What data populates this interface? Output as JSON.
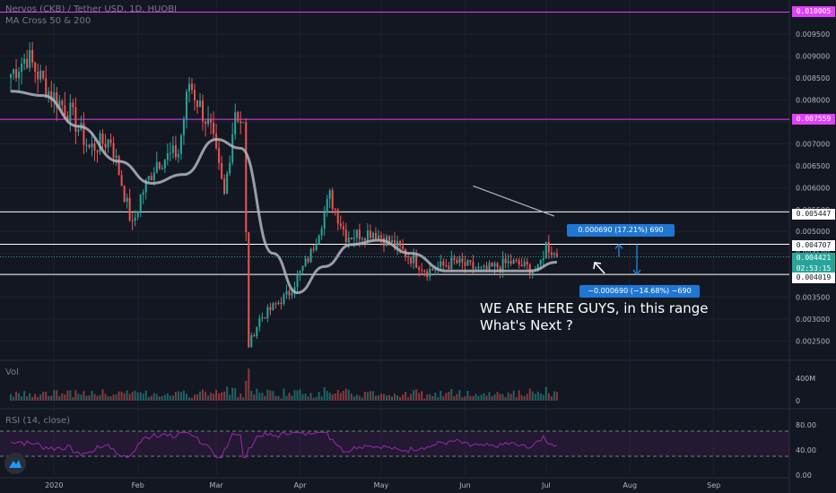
{
  "header": {
    "symbol_line": "Nervos (CKB) / Tether USD, 1D, HUOBI",
    "indicator_line": "MA Cross 50 & 200"
  },
  "panes": {
    "volume_label": "Vol",
    "rsi_label": "RSI (14, close)"
  },
  "colors": {
    "background": "#131722",
    "up": "#26a69a",
    "down": "#ef5350",
    "ma": "#b2b5be",
    "level_magenta": "#e040fb",
    "level_white": "#ffffff",
    "rsi_line": "#9c27b0",
    "measure_box": "#1f76d3",
    "current_price": "#26a69a"
  },
  "price_tags": {
    "top_level": "0.010005",
    "upper_level": "0.007559",
    "resistance_1": "0.005447",
    "resistance_2": "0.004707",
    "current_price": "0.004421",
    "countdown": "02:53:15",
    "support": "0.004019"
  },
  "measure": {
    "up_text": "0.000690 (17.21%) 690",
    "down_text": "−0.000690 (−14.68%) −690"
  },
  "annotation": {
    "line1": "WE ARE HERE GUYS, in this range",
    "line2": "What's Next ?"
  },
  "chart_data": {
    "type": "candlestick",
    "symbol": "CKB/USDT",
    "timeframe": "1D",
    "exchange": "HUOBI",
    "y_axis": {
      "scale": "linear",
      "range": [
        0.0021,
        0.0102
      ],
      "ticks": [
        "0.009500",
        "0.009000",
        "0.008500",
        "0.008000",
        "0.007500",
        "0.007000",
        "0.006500",
        "0.006000",
        "0.005500",
        "0.005000",
        "0.004500",
        "0.004000",
        "0.003500",
        "0.003000",
        "0.002500"
      ]
    },
    "x_axis": {
      "ticks": [
        "2020",
        "Feb",
        "Mar",
        "Apr",
        "May",
        "Jun",
        "Jul",
        "Aug",
        "Sep"
      ]
    },
    "volume_axis": {
      "ticks": [
        "400M",
        "0"
      ]
    },
    "rsi_axis": {
      "ticks": [
        "80.00",
        "40.00",
        "0.00"
      ]
    },
    "horizontal_levels": [
      {
        "price": 0.010005,
        "color": "#e040fb"
      },
      {
        "price": 0.007559,
        "color": "#e040fb"
      },
      {
        "price": 0.005447,
        "color": "#ffffff"
      },
      {
        "price": 0.004707,
        "color": "#ffffff"
      },
      {
        "price": 0.004019,
        "color": "#ffffff"
      }
    ],
    "anchors": [
      {
        "date": "2019-12-16",
        "close": 0.0086
      },
      {
        "date": "2019-12-22",
        "close": 0.009
      },
      {
        "date": "2019-12-30",
        "close": 0.0082
      },
      {
        "date": "2020-01-07",
        "close": 0.0077
      },
      {
        "date": "2020-01-14",
        "close": 0.0069
      },
      {
        "date": "2020-01-22",
        "close": 0.0071
      },
      {
        "date": "2020-01-30",
        "close": 0.0051
      },
      {
        "date": "2020-02-02",
        "close": 0.0058
      },
      {
        "date": "2020-02-08",
        "close": 0.0066
      },
      {
        "date": "2020-02-16",
        "close": 0.0068
      },
      {
        "date": "2020-02-20",
        "close": 0.0084
      },
      {
        "date": "2020-02-28",
        "close": 0.0073
      },
      {
        "date": "2020-03-04",
        "close": 0.0058
      },
      {
        "date": "2020-03-08",
        "close": 0.0078
      },
      {
        "date": "2020-03-11",
        "close": 0.0074
      },
      {
        "date": "2020-03-13",
        "close": 0.0024
      },
      {
        "date": "2020-03-17",
        "close": 0.003
      },
      {
        "date": "2020-03-28",
        "close": 0.0036
      },
      {
        "date": "2020-04-05",
        "close": 0.0045
      },
      {
        "date": "2020-04-12",
        "close": 0.0058
      },
      {
        "date": "2020-04-18",
        "close": 0.0049
      },
      {
        "date": "2020-04-28",
        "close": 0.005
      },
      {
        "date": "2020-05-08",
        "close": 0.0046
      },
      {
        "date": "2020-05-18",
        "close": 0.0041
      },
      {
        "date": "2020-05-28",
        "close": 0.0043
      },
      {
        "date": "2020-06-08",
        "close": 0.0041
      },
      {
        "date": "2020-06-18",
        "close": 0.0043
      },
      {
        "date": "2020-06-28",
        "close": 0.0041
      },
      {
        "date": "2020-07-01",
        "close": 0.0047
      },
      {
        "date": "2020-07-05",
        "close": 0.00442
      }
    ],
    "ma_anchors": [
      {
        "date": "2019-12-16",
        "value": 0.0082
      },
      {
        "date": "2019-12-28",
        "value": 0.0081
      },
      {
        "date": "2020-01-10",
        "value": 0.0074
      },
      {
        "date": "2020-01-25",
        "value": 0.0066
      },
      {
        "date": "2020-02-06",
        "value": 0.0061
      },
      {
        "date": "2020-02-18",
        "value": 0.0063
      },
      {
        "date": "2020-03-01",
        "value": 0.0071
      },
      {
        "date": "2020-03-10",
        "value": 0.0069
      },
      {
        "date": "2020-03-22",
        "value": 0.0045
      },
      {
        "date": "2020-03-31",
        "value": 0.0036
      },
      {
        "date": "2020-04-10",
        "value": 0.0042
      },
      {
        "date": "2020-04-20",
        "value": 0.0047
      },
      {
        "date": "2020-04-30",
        "value": 0.0048
      },
      {
        "date": "2020-05-12",
        "value": 0.0045
      },
      {
        "date": "2020-05-25",
        "value": 0.0041
      },
      {
        "date": "2020-06-10",
        "value": 0.0041
      },
      {
        "date": "2020-06-25",
        "value": 0.0041
      },
      {
        "date": "2020-07-05",
        "value": 0.0043
      }
    ],
    "trend_line": [
      {
        "date": "2020-06-04",
        "price": 0.00604
      },
      {
        "date": "2020-07-04",
        "price": 0.00535
      }
    ],
    "measure_range": {
      "from": 0.004019,
      "mid": 0.004421,
      "to": 0.004707
    },
    "rsi_range": [
      0,
      100
    ],
    "rsi_levels": [
      70,
      30
    ],
    "volume_max_label": "400M"
  }
}
